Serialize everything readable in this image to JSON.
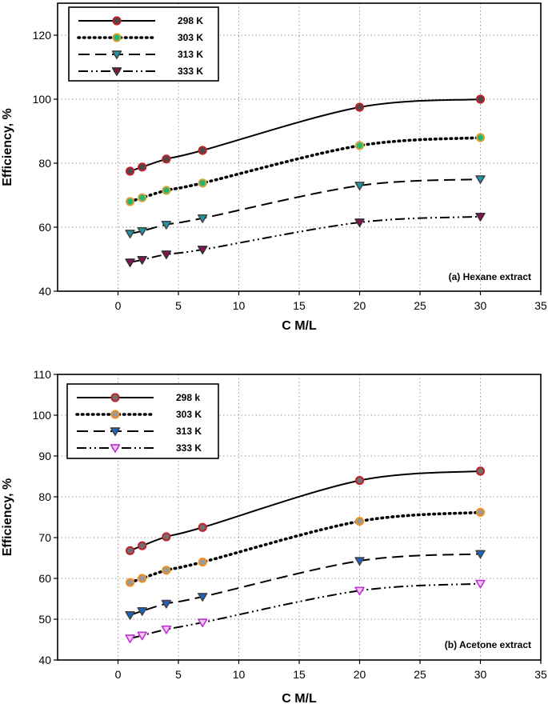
{
  "chart_data": [
    {
      "type": "line",
      "panel": "top",
      "annotation": "(a) Hexane extract",
      "xlabel": "C M/L",
      "ylabel": "Efficiency, %",
      "xlim": [
        -5,
        35
      ],
      "ylim": [
        40,
        130
      ],
      "xticks": [
        0,
        5,
        10,
        15,
        20,
        25,
        30,
        35
      ],
      "yticks": [
        40,
        60,
        80,
        100,
        120
      ],
      "x": [
        1,
        2,
        4,
        7,
        20,
        30
      ],
      "legend_position": "top-left",
      "series": [
        {
          "name": "298 K",
          "line": "solid",
          "marker": "circle",
          "marker_fill": "#4a4a4a",
          "marker_edge": "#c0202a",
          "values": [
            77.5,
            78.8,
            81.3,
            84.0,
            97.5,
            100.0
          ]
        },
        {
          "name": "303 K",
          "line": "dotted",
          "marker": "circle",
          "marker_fill": "#20b870",
          "marker_edge": "#d4a23a",
          "values": [
            68.0,
            69.2,
            71.5,
            73.8,
            85.5,
            88.0
          ]
        },
        {
          "name": "313 K",
          "line": "dashed",
          "marker": "triangle-down",
          "marker_fill": "#1a9aa8",
          "marker_edge": "#444444",
          "values": [
            58.0,
            58.8,
            60.8,
            62.8,
            73.0,
            75.0
          ]
        },
        {
          "name": "333 K",
          "line": "dashdotdot",
          "marker": "triangle-down",
          "marker_fill": "#8a1050",
          "marker_edge": "#333333",
          "values": [
            49.0,
            49.8,
            51.5,
            53.0,
            61.5,
            63.3
          ]
        }
      ]
    },
    {
      "type": "line",
      "panel": "bottom",
      "annotation": "(b) Acetone extract",
      "xlabel": "C M/L",
      "ylabel": "Efficiency, %",
      "xlim": [
        -5,
        35
      ],
      "ylim": [
        40,
        110
      ],
      "xticks": [
        0,
        5,
        10,
        15,
        20,
        25,
        30,
        35
      ],
      "yticks": [
        40,
        50,
        60,
        70,
        80,
        90,
        100,
        110
      ],
      "x": [
        1,
        2,
        4,
        7,
        20,
        30
      ],
      "legend_position": "top-left",
      "series": [
        {
          "name": "298 k",
          "line": "solid",
          "marker": "circle",
          "marker_fill": "#707070",
          "marker_edge": "#c0202a",
          "values": [
            66.8,
            68.0,
            70.2,
            72.5,
            84.0,
            86.3
          ]
        },
        {
          "name": "303 K",
          "line": "dotted",
          "marker": "circle",
          "marker_fill": "#9a9a9a",
          "marker_edge": "#f09020",
          "values": [
            59.0,
            60.0,
            62.0,
            64.0,
            74.0,
            76.2
          ]
        },
        {
          "name": "313 K",
          "line": "dashed",
          "marker": "triangle-down",
          "marker_fill": "#1a64c8",
          "marker_edge": "#444444",
          "values": [
            51.0,
            52.0,
            53.8,
            55.5,
            64.3,
            66.0
          ]
        },
        {
          "name": "333 K",
          "line": "dashdotdot",
          "marker": "triangle-down",
          "marker_fill": "#f4c8f4",
          "marker_edge": "#c030d8",
          "values": [
            45.3,
            46.0,
            47.5,
            49.2,
            57.0,
            58.7
          ]
        }
      ]
    }
  ]
}
